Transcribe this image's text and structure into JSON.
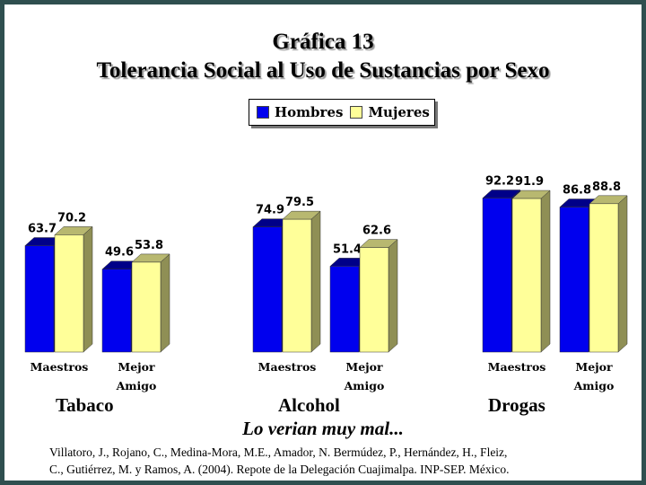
{
  "title_line1": "Gráfica 13",
  "title_line2": "Tolerancia Social al Uso de Sustancias por Sexo",
  "legend": [
    {
      "label": "Hombres",
      "color": "#0000ee"
    },
    {
      "label": "Mujeres",
      "color": "#ffff99"
    }
  ],
  "note": "Lo verian muy mal...",
  "source_line1": "Villatoro, J., Rojano, C., Medina-Mora, M.E., Amador, N. Bermúdez, P., Hernández, H., Fleiz,",
  "source_line2": "C., Gutiérrez, M. y Ramos, A. (2004). Repote de la Delegación Cuajimalpa. INP-SEP. México.",
  "chart_data": {
    "type": "bar",
    "style": "3d-clustered",
    "groups": [
      {
        "name": "Tabaco",
        "categories": [
          "Maestros",
          "Mejor Amigo"
        ],
        "series": [
          {
            "name": "Hombres",
            "values": [
              63.7,
              49.6
            ]
          },
          {
            "name": "Mujeres",
            "values": [
              70.2,
              53.8
            ]
          }
        ]
      },
      {
        "name": "Alcohol",
        "categories": [
          "Maestros",
          "Mejor Amigo"
        ],
        "series": [
          {
            "name": "Hombres",
            "values": [
              74.9,
              51.4
            ]
          },
          {
            "name": "Mujeres",
            "values": [
              79.5,
              62.6
            ]
          }
        ]
      },
      {
        "name": "Drogas",
        "categories": [
          "Maestros",
          "Mejor Amigo"
        ],
        "series": [
          {
            "name": "Hombres",
            "values": [
              92.2,
              86.8
            ]
          },
          {
            "name": "Mujeres",
            "values": [
              91.9,
              88.8
            ]
          }
        ]
      }
    ],
    "legend_position": "top-center",
    "grid": false,
    "colors": {
      "Hombres": "#0000ee",
      "Mujeres": "#ffff99"
    }
  }
}
